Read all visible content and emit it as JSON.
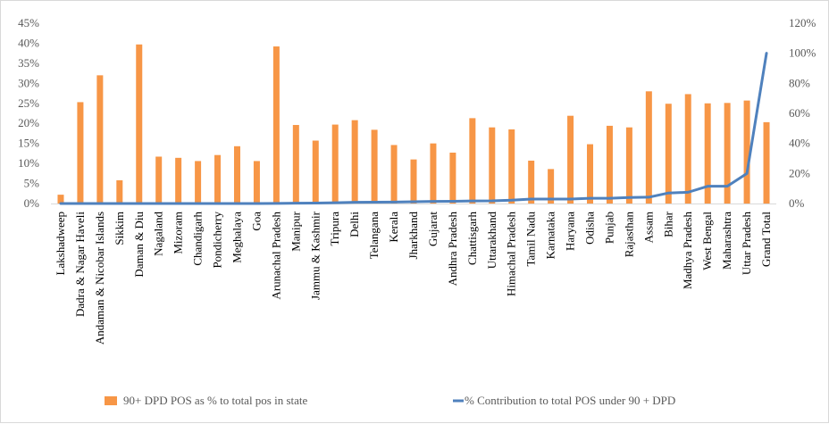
{
  "chart_data": {
    "type": "bar+line",
    "categories": [
      "Lakshadweep",
      "Dadra & Nagar Haveli",
      "Andaman & Nicobar Islands",
      "Sikkim",
      "Daman & Diu",
      "Nagaland",
      "Mizoram",
      "Chandigarh",
      "Pondicherry",
      "Meghalaya",
      "Goa",
      "Arunachal Pradesh",
      "Manipur",
      "Jammu & Kashmir",
      "Tripura",
      "Delhi",
      "Telangana",
      "Kerala",
      "Jharkhand",
      "Gujarat",
      "Andhra Pradesh",
      "Chattisgarh",
      "Uttarakhand",
      "Himachal Pradesh",
      "Tamil Nadu",
      "Karnataka",
      "Haryana",
      "Odisha",
      "Punjab",
      "Rajasthan",
      "Assam",
      "Bihar",
      "Madhya Pradesh",
      "West Bengal",
      "Maharashtra",
      "Uttar Pradesh",
      "Grand Total"
    ],
    "series": [
      {
        "name": "90+ DPD POS  as % to  total pos in state",
        "type": "bar",
        "axis": "left",
        "color": "#f79646",
        "values": [
          2.2,
          25.3,
          32.0,
          5.8,
          39.7,
          11.7,
          11.4,
          10.6,
          12.1,
          14.3,
          10.6,
          39.2,
          19.6,
          15.7,
          19.7,
          20.8,
          18.4,
          14.6,
          11.0,
          15.0,
          12.7,
          21.3,
          19.0,
          18.5,
          10.7,
          8.6,
          21.9,
          14.8,
          19.4,
          19.0,
          28.0,
          24.9,
          27.3,
          25.0,
          25.1,
          25.7,
          20.3
        ]
      },
      {
        "name": "% Contribution to total POS under 90 + DPD",
        "type": "line",
        "axis": "right",
        "color": "#4f81bd",
        "values": [
          0,
          0,
          0,
          0,
          0,
          0,
          0,
          0,
          0,
          0,
          0,
          0.1,
          0.2,
          0.3,
          0.5,
          0.8,
          0.9,
          1.0,
          1.2,
          1.4,
          1.5,
          1.7,
          1.8,
          2.2,
          3.0,
          3.0,
          3.0,
          3.5,
          3.5,
          4.0,
          4.2,
          7.0,
          7.5,
          11.5,
          11.5,
          20.0,
          100.0
        ]
      }
    ],
    "y_left": {
      "min": 0,
      "max": 45,
      "step": 5,
      "tick_labels": [
        "0%",
        "5%",
        "10%",
        "15%",
        "20%",
        "25%",
        "30%",
        "35%",
        "40%",
        "45%"
      ]
    },
    "y_right": {
      "min": 0,
      "max": 120,
      "step": 20,
      "tick_labels": [
        "0%",
        "20%",
        "40%",
        "60%",
        "80%",
        "100%",
        "120%"
      ]
    },
    "grid": false,
    "legend_position": "bottom"
  }
}
